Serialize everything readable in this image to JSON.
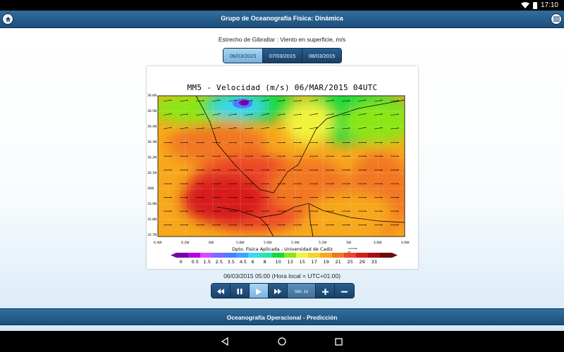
{
  "status": {
    "time": "17:10"
  },
  "header": {
    "title": "Grupo de Oceanografía Física: Dinámica"
  },
  "page": {
    "subtitle": "Estrecho de Gibraltar : Viento en superficie, m/s"
  },
  "date_tabs": [
    {
      "label": "06/03/2015",
      "active": true
    },
    {
      "label": "07/03/2015",
      "active": false
    },
    {
      "label": "08/03/2015",
      "active": false
    }
  ],
  "map": {
    "title": "MM5 - Velocidad (m/s)  06/MAR/2015 04UTC",
    "credit": "Dpto. Fisica Aplicada - Universidad de Cadiz",
    "ref_arrow_label": "10",
    "lat_labels": [
      "36.6N",
      "36.5N",
      "36.4N",
      "36.3N",
      "36.2N",
      "36.1N",
      "36N",
      "35.9N",
      "35.8N",
      "35.7N"
    ],
    "lon_labels": [
      "6.4W",
      "6.2W",
      "6W",
      "5.8W",
      "5.6W",
      "5.4W",
      "5.2W",
      "5W",
      "4.8W",
      "4.6W"
    ],
    "colorbar_ticks": [
      "0",
      "0.5",
      "1.5",
      "2.5",
      "3.5",
      "4.5",
      "6",
      "8",
      "10",
      "13",
      "15",
      "17",
      "19",
      "21",
      "25",
      "29",
      "33"
    ],
    "colorbar_colors": [
      "#7a00a8",
      "#b400e6",
      "#d24bff",
      "#7a6bff",
      "#4d7cff",
      "#3da3ff",
      "#3dd6f5",
      "#22e6b0",
      "#19d93a",
      "#8ce619",
      "#f2f23a",
      "#f5d327",
      "#f7a81c",
      "#f27722",
      "#ec4628",
      "#d81b1b",
      "#a50f15",
      "#6e0a0e"
    ]
  },
  "timestamp": "06/03/2015 05:00 (Hora local = UTC+01:00)",
  "controls": {
    "speed_label": "Vel: 1x"
  },
  "footer": {
    "title": "Oceanografía Operacional - Predicción"
  }
}
